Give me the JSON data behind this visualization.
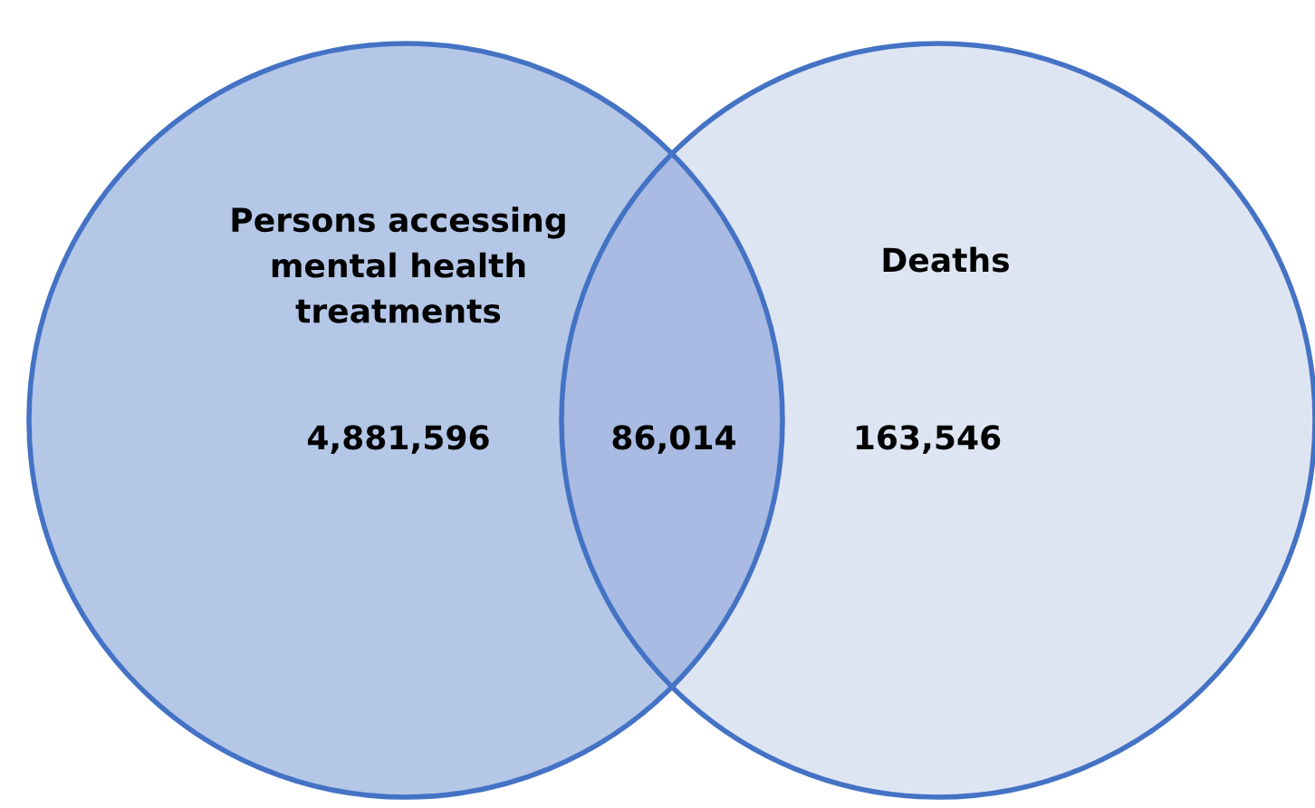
{
  "chart_data": {
    "type": "other",
    "categories": [
      "Persons accessing\nmental health\ntreatments",
      null,
      "Deaths"
    ],
    "values": [
      4881596,
      86014,
      163546
    ],
    "value_labels": [
      "4,881,596",
      "86,014",
      "163,546"
    ],
    "colors": [
      "#b4c7e7",
      "#a9bbe2",
      "#dee5f2"
    ]
  }
}
